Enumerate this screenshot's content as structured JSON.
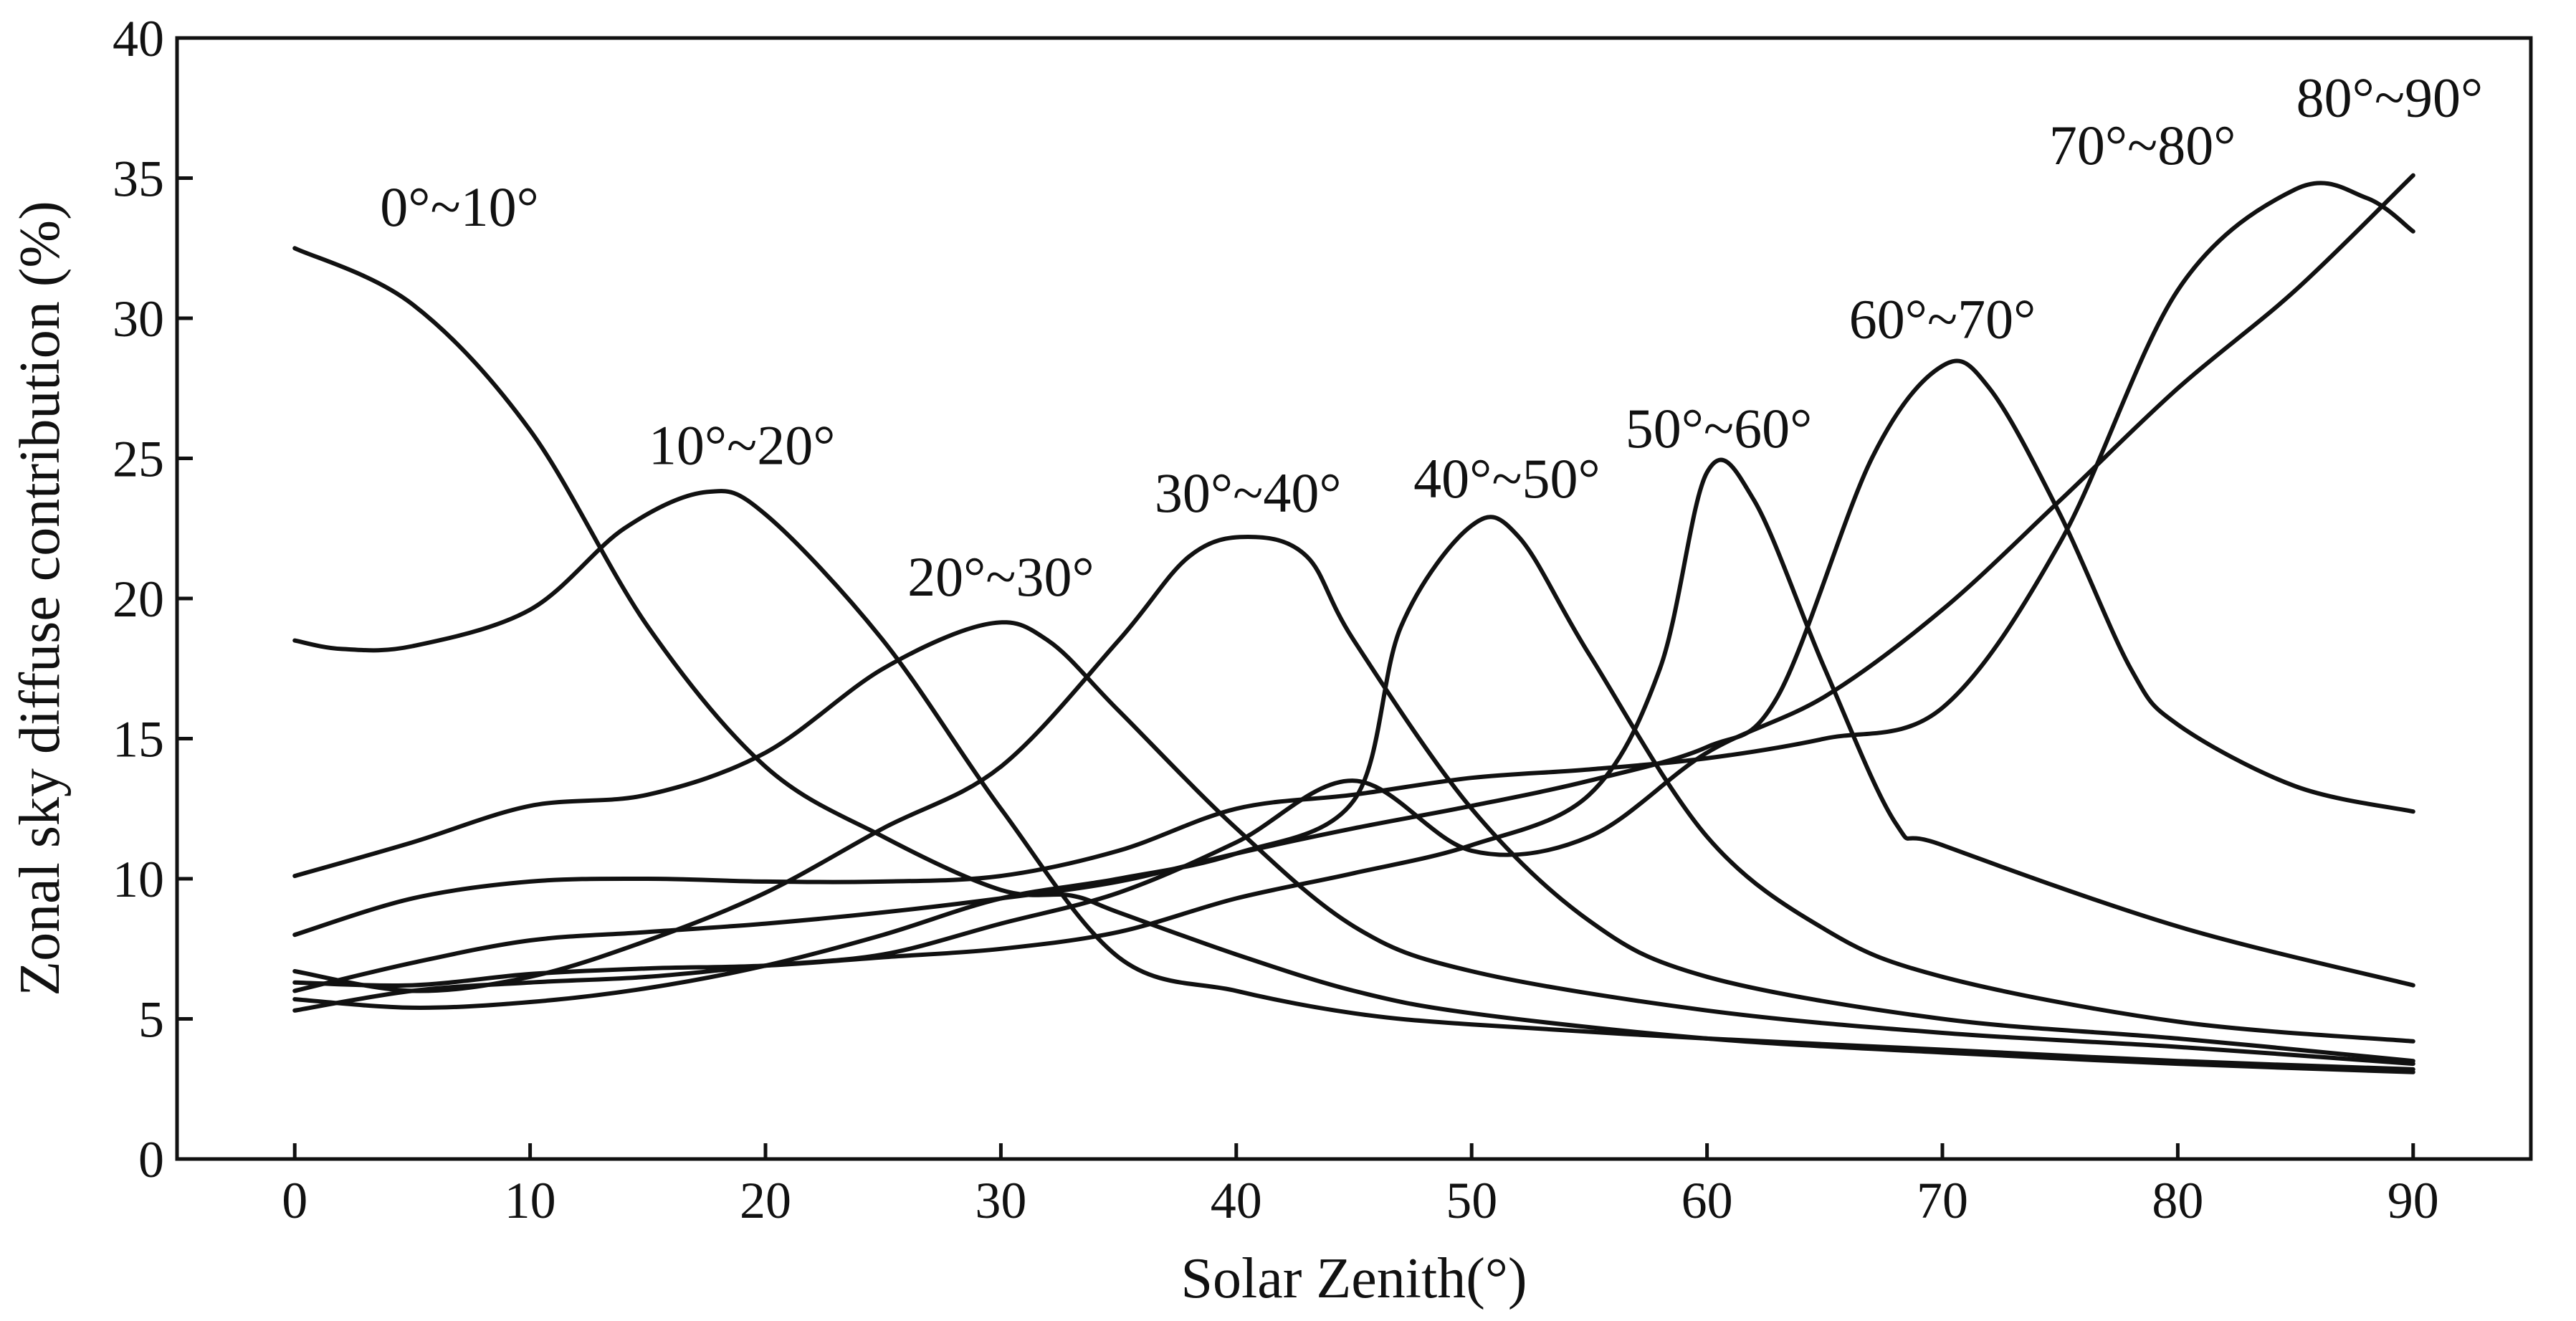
{
  "chart_data": {
    "type": "line",
    "title": "",
    "xlabel": "Solar Zenith(°)",
    "ylabel": "Zonal sky diffuse contribution (%)",
    "xlim": [
      -5,
      95
    ],
    "ylim": [
      0,
      40
    ],
    "x_ticks": [
      0,
      10,
      20,
      30,
      40,
      50,
      60,
      70,
      80,
      90
    ],
    "y_ticks": [
      0,
      5,
      10,
      15,
      20,
      25,
      30,
      35,
      40
    ],
    "grid": false,
    "legend": "inline labels",
    "series": [
      {
        "name": "0°~10°",
        "label_at": [
          7,
          33.3
        ],
        "points": [
          [
            0,
            32.5
          ],
          [
            5,
            30.5
          ],
          [
            10,
            26
          ],
          [
            15,
            19
          ],
          [
            20,
            14
          ],
          [
            25,
            11.5
          ],
          [
            30,
            9.6
          ],
          [
            33,
            9.4
          ],
          [
            35,
            8.8
          ],
          [
            40,
            7.3
          ],
          [
            45,
            6.0
          ],
          [
            50,
            5.2
          ],
          [
            60,
            4.3
          ],
          [
            70,
            3.8
          ],
          [
            80,
            3.4
          ],
          [
            90,
            3.1
          ]
        ]
      },
      {
        "name": "10°~20°",
        "label_at": [
          19,
          24.8
        ],
        "points": [
          [
            0,
            18.5
          ],
          [
            2,
            18.2
          ],
          [
            5,
            18.3
          ],
          [
            10,
            19.6
          ],
          [
            14,
            22.5
          ],
          [
            17.5,
            23.8
          ],
          [
            20,
            23
          ],
          [
            25,
            18.5
          ],
          [
            30,
            12.5
          ],
          [
            35,
            7.2
          ],
          [
            40,
            6.0
          ],
          [
            45,
            5.2
          ],
          [
            50,
            4.8
          ],
          [
            60,
            4.3
          ],
          [
            70,
            3.9
          ],
          [
            80,
            3.5
          ],
          [
            90,
            3.2
          ]
        ]
      },
      {
        "name": "20°~30°",
        "label_at": [
          30,
          20.1
        ],
        "points": [
          [
            0,
            10.1
          ],
          [
            5,
            11.3
          ],
          [
            10,
            12.6
          ],
          [
            15,
            13.0
          ],
          [
            20,
            14.5
          ],
          [
            25,
            17.5
          ],
          [
            29.5,
            19.1
          ],
          [
            32,
            18.5
          ],
          [
            35,
            16
          ],
          [
            40,
            11.8
          ],
          [
            45,
            8.3
          ],
          [
            50,
            6.7
          ],
          [
            60,
            5.3
          ],
          [
            70,
            4.5
          ],
          [
            80,
            4.0
          ],
          [
            90,
            3.4
          ]
        ]
      },
      {
        "name": "30°~40°",
        "label_at": [
          40.5,
          23.1
        ],
        "points": [
          [
            0,
            6.7
          ],
          [
            5,
            6.0
          ],
          [
            10,
            6.5
          ],
          [
            15,
            7.8
          ],
          [
            20,
            9.5
          ],
          [
            25,
            11.8
          ],
          [
            30,
            14.0
          ],
          [
            35,
            18.5
          ],
          [
            38,
            21.5
          ],
          [
            40.5,
            22.2
          ],
          [
            43,
            21.5
          ],
          [
            45,
            18.5
          ],
          [
            50,
            12.5
          ],
          [
            55,
            8.5
          ],
          [
            60,
            6.5
          ],
          [
            70,
            5.0
          ],
          [
            80,
            4.3
          ],
          [
            90,
            3.5
          ]
        ]
      },
      {
        "name": "40°~50°",
        "label_at": [
          51.5,
          23.6
        ],
        "points": [
          [
            0,
            5.7
          ],
          [
            5,
            5.4
          ],
          [
            10,
            5.6
          ],
          [
            15,
            6.1
          ],
          [
            20,
            6.9
          ],
          [
            25,
            8.0
          ],
          [
            30,
            9.3
          ],
          [
            35,
            10.0
          ],
          [
            40,
            10.9
          ],
          [
            45,
            12.8
          ],
          [
            47,
            19
          ],
          [
            50,
            22.6
          ],
          [
            52,
            22.2
          ],
          [
            55,
            18
          ],
          [
            60,
            11.5
          ],
          [
            65,
            8.2
          ],
          [
            70,
            6.5
          ],
          [
            80,
            4.9
          ],
          [
            90,
            4.2
          ]
        ]
      },
      {
        "name": "50°~60°",
        "label_at": [
          60.5,
          25.4
        ],
        "points": [
          [
            0,
            6.3
          ],
          [
            5,
            6.2
          ],
          [
            10,
            6.6
          ],
          [
            15,
            6.8
          ],
          [
            20,
            6.9
          ],
          [
            25,
            7.2
          ],
          [
            30,
            7.5
          ],
          [
            35,
            8.1
          ],
          [
            40,
            9.3
          ],
          [
            45,
            10.2
          ],
          [
            50,
            11.2
          ],
          [
            55,
            13.0
          ],
          [
            58,
            17.5
          ],
          [
            60,
            24.5
          ],
          [
            62,
            23.5
          ],
          [
            65,
            17.5
          ],
          [
            68,
            12
          ],
          [
            70,
            11.2
          ],
          [
            80,
            8.3
          ],
          [
            90,
            6.2
          ]
        ]
      },
      {
        "name": "60°~70°",
        "label_at": [
          70,
          29.3
        ],
        "points": [
          [
            0,
            6.0
          ],
          [
            5,
            7.0
          ],
          [
            10,
            7.8
          ],
          [
            15,
            8.1
          ],
          [
            20,
            8.4
          ],
          [
            25,
            8.8
          ],
          [
            30,
            9.3
          ],
          [
            35,
            9.9
          ],
          [
            40,
            10.9
          ],
          [
            45,
            11.8
          ],
          [
            50,
            12.6
          ],
          [
            55,
            13.5
          ],
          [
            60,
            14.7
          ],
          [
            63,
            16.5
          ],
          [
            67,
            25
          ],
          [
            70,
            28.3
          ],
          [
            72,
            27.5
          ],
          [
            75,
            23
          ],
          [
            78,
            17.5
          ],
          [
            80,
            15.5
          ],
          [
            85,
            13.3
          ],
          [
            90,
            12.4
          ]
        ]
      },
      {
        "name": "70°~80°",
        "label_at": [
          78.5,
          35.5
        ],
        "points": [
          [
            0,
            8.0
          ],
          [
            5,
            9.3
          ],
          [
            10,
            9.9
          ],
          [
            15,
            10.0
          ],
          [
            20,
            9.9
          ],
          [
            25,
            9.9
          ],
          [
            30,
            10.1
          ],
          [
            35,
            11.0
          ],
          [
            40,
            12.5
          ],
          [
            45,
            13.0
          ],
          [
            50,
            13.6
          ],
          [
            55,
            13.9
          ],
          [
            60,
            14.3
          ],
          [
            65,
            15.0
          ],
          [
            70,
            16.1
          ],
          [
            75,
            22
          ],
          [
            80,
            31
          ],
          [
            85,
            34.6
          ],
          [
            88,
            34.3
          ],
          [
            90,
            33.1
          ]
        ]
      },
      {
        "name": "80°~90°",
        "label_at": [
          89,
          37.2
        ],
        "points": [
          [
            0,
            5.3
          ],
          [
            5,
            6.0
          ],
          [
            10,
            6.3
          ],
          [
            15,
            6.5
          ],
          [
            20,
            6.9
          ],
          [
            25,
            7.3
          ],
          [
            30,
            8.4
          ],
          [
            35,
            9.5
          ],
          [
            40,
            11.3
          ],
          [
            45,
            13.5
          ],
          [
            50,
            11.0
          ],
          [
            55,
            11.5
          ],
          [
            60,
            14.5
          ],
          [
            65,
            16.5
          ],
          [
            70,
            19.6
          ],
          [
            75,
            23.5
          ],
          [
            80,
            27.5
          ],
          [
            85,
            31
          ],
          [
            90,
            35.1
          ]
        ]
      }
    ]
  }
}
